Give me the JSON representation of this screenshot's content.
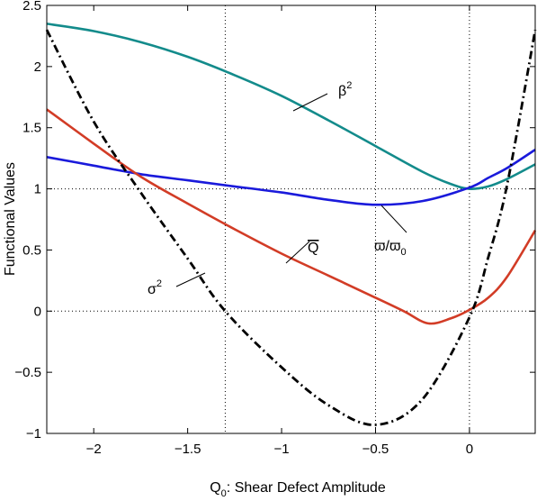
{
  "chart_data": {
    "type": "line",
    "title": "",
    "xlabel": "Q_0: Shear Defect Amplitude",
    "xlabel_parts": {
      "main": "Q",
      "sub": "0",
      "rest": ": Shear Defect Amplitude"
    },
    "ylabel": "Functional Values",
    "xlim": [
      -2.25,
      0.35
    ],
    "ylim": [
      -1,
      2.5
    ],
    "xticks": [
      -2,
      -1.5,
      -1,
      -0.5,
      0
    ],
    "xtick_labels": [
      "−2",
      "−1.5",
      "−1",
      "−0.5",
      "0"
    ],
    "yticks": [
      -1,
      -0.5,
      0,
      0.5,
      1,
      1.5,
      2,
      2.5
    ],
    "ytick_labels": [
      "−1",
      "−0.5",
      "0",
      "0.5",
      "1",
      "1.5",
      "2",
      "2.5"
    ],
    "grid": false,
    "reference_lines": {
      "horizontal": [
        0,
        1
      ],
      "vertical": [
        -1.3,
        -0.5,
        0
      ],
      "style": "dotted"
    },
    "series": [
      {
        "label_display": "β",
        "label_sup": "2",
        "color": "#138b8b",
        "style": "solid",
        "x": [
          -2.25,
          -2.0,
          -1.75,
          -1.5,
          -1.25,
          -1.0,
          -0.75,
          -0.5,
          -0.25,
          -0.1,
          0.0,
          0.1,
          0.2,
          0.35
        ],
        "y": [
          2.35,
          2.29,
          2.2,
          2.08,
          1.93,
          1.76,
          1.56,
          1.35,
          1.14,
          1.04,
          1.0,
          1.02,
          1.08,
          1.2
        ]
      },
      {
        "label_display": "ϖ/ϖ",
        "label_sub": "0",
        "color": "#1a1adb",
        "style": "solid",
        "x": [
          -2.25,
          -2.0,
          -1.75,
          -1.5,
          -1.25,
          -1.0,
          -0.75,
          -0.5,
          -0.25,
          0.0,
          0.1,
          0.2,
          0.35
        ],
        "y": [
          1.26,
          1.19,
          1.12,
          1.07,
          1.02,
          0.97,
          0.91,
          0.87,
          0.9,
          1.01,
          1.09,
          1.17,
          1.32
        ]
      },
      {
        "label_display": "Q",
        "label_overline": true,
        "color": "#d23c26",
        "style": "solid",
        "x": [
          -2.25,
          -2.0,
          -1.75,
          -1.5,
          -1.25,
          -1.0,
          -0.75,
          -0.5,
          -0.35,
          -0.22,
          -0.1,
          0.0,
          0.1,
          0.2,
          0.35
        ],
        "y": [
          1.65,
          1.37,
          1.1,
          0.88,
          0.67,
          0.47,
          0.29,
          0.11,
          0.0,
          -0.1,
          -0.06,
          0.01,
          0.11,
          0.28,
          0.66
        ]
      },
      {
        "label_display": "σ",
        "label_sup": "2",
        "color": "#000000",
        "style": "dashdot",
        "x": [
          -2.25,
          -2.0,
          -1.75,
          -1.5,
          -1.3,
          -1.0,
          -0.75,
          -0.5,
          -0.25,
          0.0,
          0.1,
          0.2,
          0.35
        ],
        "y": [
          2.3,
          1.55,
          0.97,
          0.43,
          0.0,
          -0.46,
          -0.77,
          -0.93,
          -0.72,
          -0.05,
          0.44,
          1.03,
          2.3
        ]
      }
    ]
  }
}
